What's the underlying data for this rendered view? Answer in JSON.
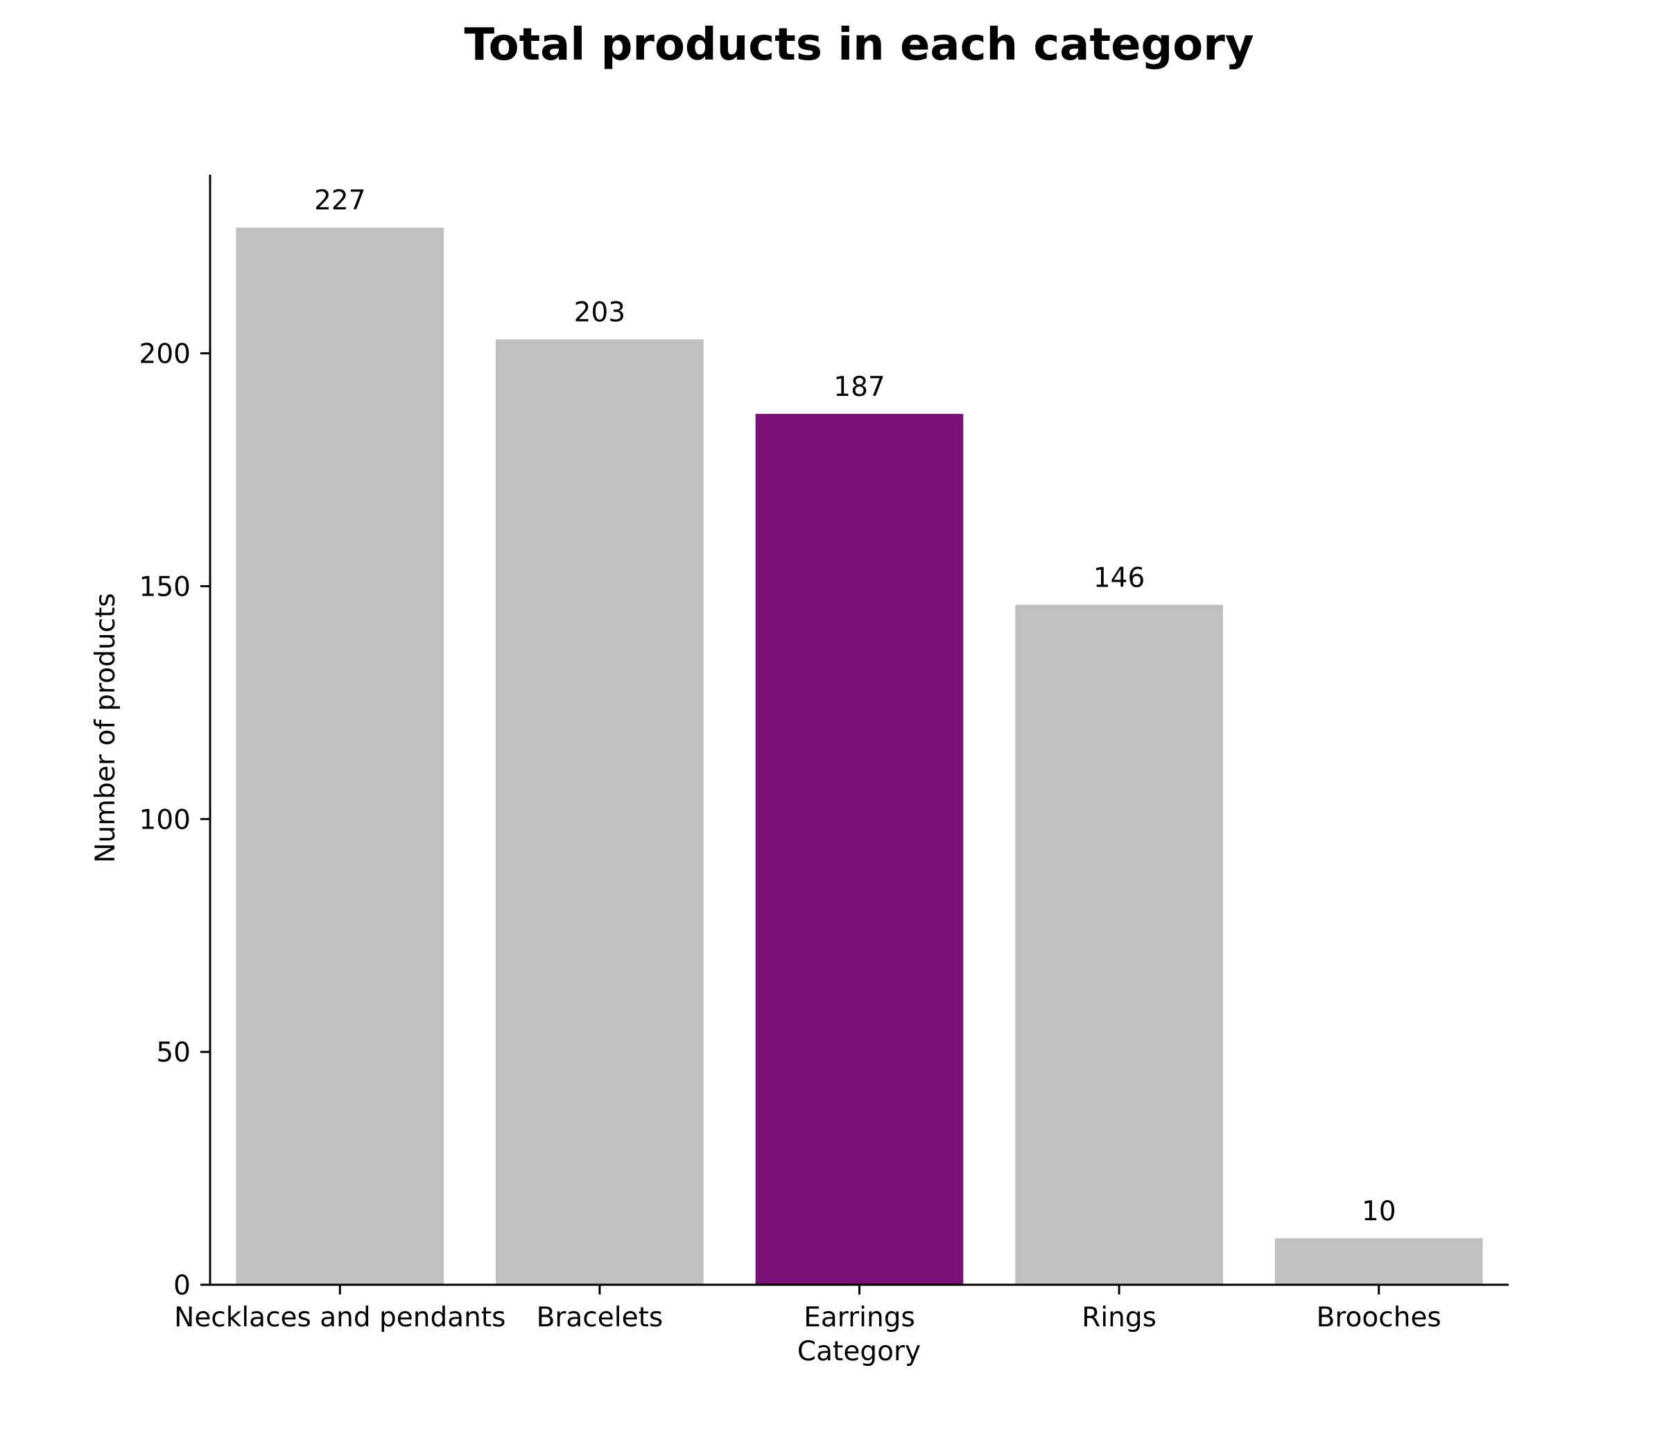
{
  "chart_data": {
    "type": "bar",
    "title": "Total products in each category",
    "xlabel": "Category",
    "ylabel": "Number of products",
    "categories": [
      "Necklaces and pendants",
      "Bracelets",
      "Earrings",
      "Rings",
      "Brooches"
    ],
    "values": [
      227,
      203,
      187,
      146,
      10
    ],
    "data_labels": [
      "227",
      "203",
      "187",
      "146",
      "10"
    ],
    "bar_colors": [
      "#c0c0c0",
      "#c0c0c0",
      "#7b1176",
      "#c0c0c0",
      "#c0c0c0"
    ],
    "highlight_category": "Earrings",
    "ylim": [
      0,
      238.35
    ],
    "yticks": [
      0,
      50,
      100,
      150,
      200
    ],
    "ytick_labels": [
      "0",
      "50",
      "100",
      "150",
      "200"
    ],
    "grid": false,
    "legend": "none",
    "spines": [
      "left",
      "bottom"
    ]
  }
}
